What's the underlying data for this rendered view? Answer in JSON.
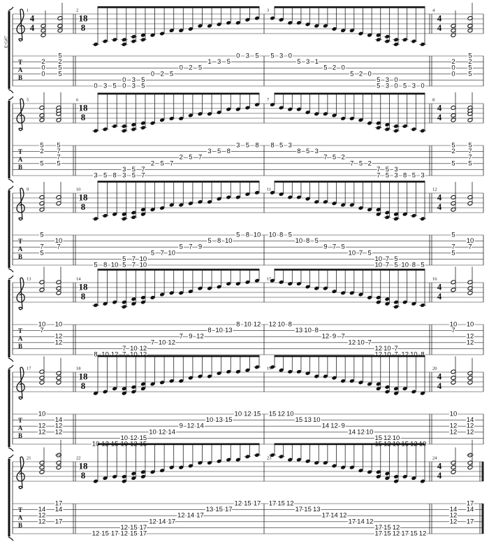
{
  "side_label": "E-G#7",
  "tab_label": [
    "T",
    "A",
    "B"
  ],
  "systems": [
    {
      "measures": [
        {
          "number": 1,
          "time": [
            4,
            4
          ],
          "columns": [
            {
              "2": 2,
              "3": 0,
              "4": 0
            },
            {
              "1": 5,
              "2": 2,
              "3": 5,
              "4": 5
            }
          ]
        },
        {
          "number": 2,
          "time": [
            18,
            8
          ],
          "columns": [
            {
              "6": 0
            },
            {
              "6": 3
            },
            {
              "6": 5
            },
            {
              "5": 0,
              "6": 0
            },
            {
              "5": 3,
              "6": 3
            },
            {
              "5": 5,
              "6": 5
            },
            {
              "4": 0
            },
            {
              "4": 2
            },
            {
              "4": 5
            },
            {
              "3": 0
            },
            {
              "3": 2
            },
            {
              "3": 5
            },
            {
              "2": 1
            },
            {
              "2": 3
            },
            {
              "2": 5
            },
            {
              "1": 0
            },
            {
              "1": 3
            },
            {
              "1": 5
            }
          ]
        },
        {
          "number": 3,
          "columns": [
            {
              "1": 5
            },
            {
              "1": 3
            },
            {
              "1": 0
            },
            {
              "2": 5
            },
            {
              "2": 3
            },
            {
              "2": 1
            },
            {
              "3": 5
            },
            {
              "3": 2
            },
            {
              "3": 0
            },
            {
              "4": 5
            },
            {
              "4": 2
            },
            {
              "4": 0
            },
            {
              "5": 5,
              "6": 5
            },
            {
              "5": 3,
              "6": 3
            },
            {
              "5": 0,
              "6": 0
            },
            {
              "6": 5
            },
            {
              "6": 3
            },
            {
              "6": 0
            }
          ]
        },
        {
          "number": 4,
          "time": [
            4,
            4
          ],
          "columns": [
            {
              "2": 2,
              "3": 0,
              "4": 0
            },
            {
              "1": 5,
              "2": 2,
              "3": 5,
              "4": 5
            }
          ]
        }
      ]
    },
    {
      "measures": [
        {
          "number": 5,
          "columns": [
            {
              "1": 5,
              "2": 2,
              "4": 5
            },
            {
              "1": 5,
              "2": 7,
              "3": 7,
              "4": 5
            }
          ]
        },
        {
          "number": 6,
          "time": [
            18,
            8
          ],
          "columns": [
            {
              "6": 3
            },
            {
              "6": 5
            },
            {
              "6": 8
            },
            {
              "5": 3,
              "6": 3
            },
            {
              "5": 5,
              "6": 5
            },
            {
              "5": 7,
              "6": 7
            },
            {
              "4": 2
            },
            {
              "4": 5
            },
            {
              "4": 7
            },
            {
              "3": 2
            },
            {
              "3": 5
            },
            {
              "3": 7
            },
            {
              "2": 3
            },
            {
              "2": 5
            },
            {
              "2": 8
            },
            {
              "1": 3
            },
            {
              "1": 5
            },
            {
              "1": 8
            }
          ]
        },
        {
          "number": 7,
          "columns": [
            {
              "1": 8
            },
            {
              "1": 5
            },
            {
              "1": 3
            },
            {
              "2": 8
            },
            {
              "2": 5
            },
            {
              "2": 3
            },
            {
              "3": 7
            },
            {
              "3": 5
            },
            {
              "3": 2
            },
            {
              "4": 7
            },
            {
              "4": 5
            },
            {
              "4": 2
            },
            {
              "5": 7,
              "6": 7
            },
            {
              "5": 5,
              "6": 5
            },
            {
              "5": 3,
              "6": 3
            },
            {
              "6": 8
            },
            {
              "6": 5
            },
            {
              "6": 3
            }
          ]
        },
        {
          "number": 8,
          "time": [
            4,
            4
          ],
          "columns": [
            {
              "1": 5,
              "2": 2,
              "4": 5
            },
            {
              "1": 5,
              "2": 7,
              "3": 7,
              "4": 5
            }
          ]
        }
      ]
    },
    {
      "measures": [
        {
          "number": 9,
          "columns": [
            {
              "1": 5,
              "3": 7,
              "4": 5
            },
            {
              "2": 10,
              "3": 7
            }
          ]
        },
        {
          "number": 10,
          "time": [
            18,
            8
          ],
          "columns": [
            {
              "6": 5
            },
            {
              "6": 8
            },
            {
              "6": 10
            },
            {
              "5": 5,
              "6": 5
            },
            {
              "5": 7,
              "6": 7
            },
            {
              "5": 10,
              "6": 10
            },
            {
              "4": 5
            },
            {
              "4": 7
            },
            {
              "4": 10
            },
            {
              "3": 5
            },
            {
              "3": 7
            },
            {
              "3": 9
            },
            {
              "2": 5
            },
            {
              "2": 8
            },
            {
              "2": 10
            },
            {
              "1": 5
            },
            {
              "1": 8
            },
            {
              "1": 10
            }
          ]
        },
        {
          "number": 11,
          "columns": [
            {
              "1": 10
            },
            {
              "1": 8
            },
            {
              "1": 5
            },
            {
              "2": 10
            },
            {
              "2": 8
            },
            {
              "2": 5
            },
            {
              "3": 9
            },
            {
              "3": 7
            },
            {
              "3": 5
            },
            {
              "4": 10
            },
            {
              "4": 7
            },
            {
              "4": 5
            },
            {
              "5": 10,
              "6": 10
            },
            {
              "5": 7,
              "6": 7
            },
            {
              "5": 5,
              "6": 5
            },
            {
              "6": 10
            },
            {
              "6": 8
            },
            {
              "6": 5
            }
          ]
        },
        {
          "number": 12,
          "time": [
            4,
            4
          ],
          "columns": [
            {
              "1": 5,
              "3": 7,
              "4": 5
            },
            {
              "2": 10,
              "3": 7
            }
          ]
        }
      ]
    },
    {
      "measures": [
        {
          "number": 13,
          "columns": [
            {
              "1": 10,
              "2": 7
            },
            {
              "1": 10,
              "3": 12,
              "4": 12
            }
          ]
        },
        {
          "number": 14,
          "time": [
            18,
            8
          ],
          "columns": [
            {
              "6": 8
            },
            {
              "6": 10
            },
            {
              "6": 12
            },
            {
              "5": 7,
              "6": 7
            },
            {
              "5": 10,
              "6": 10
            },
            {
              "5": 12,
              "6": 12
            },
            {
              "4": 7
            },
            {
              "4": 10
            },
            {
              "4": 12
            },
            {
              "3": 7
            },
            {
              "3": 9
            },
            {
              "3": 12
            },
            {
              "2": 8
            },
            {
              "2": 10
            },
            {
              "2": 13
            },
            {
              "1": 8
            },
            {
              "1": 10
            },
            {
              "1": 12
            }
          ]
        },
        {
          "number": 15,
          "columns": [
            {
              "1": 12
            },
            {
              "1": 10
            },
            {
              "1": 8
            },
            {
              "2": 13
            },
            {
              "2": 10
            },
            {
              "2": 8
            },
            {
              "3": 12
            },
            {
              "3": 9
            },
            {
              "3": 7
            },
            {
              "4": 12
            },
            {
              "4": 10
            },
            {
              "4": 7
            },
            {
              "5": 12,
              "6": 12
            },
            {
              "5": 10,
              "6": 10
            },
            {
              "5": 7,
              "6": 7
            },
            {
              "6": 12
            },
            {
              "6": 10
            },
            {
              "6": 8
            }
          ]
        },
        {
          "number": 16,
          "time": [
            4,
            4
          ],
          "columns": [
            {
              "1": 10,
              "2": 7
            },
            {
              "1": 10,
              "3": 12,
              "4": 12
            }
          ]
        }
      ]
    },
    {
      "measures": [
        {
          "number": 17,
          "columns": [
            {
              "1": 10,
              "3": 12,
              "4": 12
            },
            {
              "2": 14,
              "3": 12,
              "4": 12
            }
          ]
        },
        {
          "number": 18,
          "time": [
            18,
            8
          ],
          "columns": [
            {
              "6": 10
            },
            {
              "6": 12
            },
            {
              "6": 15
            },
            {
              "5": 10,
              "6": 10
            },
            {
              "5": 12,
              "6": 12
            },
            {
              "5": 15,
              "6": 15
            },
            {
              "4": 10
            },
            {
              "4": 12
            },
            {
              "4": 14
            },
            {
              "3": 9
            },
            {
              "3": 12
            },
            {
              "3": 14
            },
            {
              "2": 10
            },
            {
              "2": 13
            },
            {
              "2": 15
            },
            {
              "1": 10
            },
            {
              "1": 12
            },
            {
              "1": 15
            }
          ]
        },
        {
          "number": 19,
          "columns": [
            {
              "1": 15
            },
            {
              "1": 12
            },
            {
              "1": 10
            },
            {
              "2": 15
            },
            {
              "2": 13
            },
            {
              "2": 10
            },
            {
              "3": 14
            },
            {
              "3": 12
            },
            {
              "3": 9
            },
            {
              "4": 14
            },
            {
              "4": 12
            },
            {
              "4": 10
            },
            {
              "5": 15,
              "6": 15
            },
            {
              "5": 12,
              "6": 12
            },
            {
              "5": 10,
              "6": 10
            },
            {
              "6": 15
            },
            {
              "6": 12
            },
            {
              "6": 10
            }
          ]
        },
        {
          "number": 20,
          "time": [
            4,
            4
          ],
          "columns": [
            {
              "1": 10,
              "3": 12,
              "4": 12
            },
            {
              "2": 14,
              "3": 12,
              "4": 12
            }
          ]
        }
      ]
    },
    {
      "measures": [
        {
          "number": 21,
          "columns": [
            {
              "2": 14,
              "3": 12,
              "4": 12
            },
            {
              "1": 17,
              "2": 14,
              "4": 17
            }
          ]
        },
        {
          "number": 22,
          "time": [
            18,
            8
          ],
          "columns": [
            {
              "6": 12
            },
            {
              "6": 15
            },
            {
              "6": 17
            },
            {
              "5": 12,
              "6": 12
            },
            {
              "5": 15,
              "6": 15
            },
            {
              "5": 17,
              "6": 17
            },
            {
              "4": 12
            },
            {
              "4": 14
            },
            {
              "4": 17
            },
            {
              "3": 12
            },
            {
              "3": 14
            },
            {
              "3": 17
            },
            {
              "2": 13
            },
            {
              "2": 15
            },
            {
              "2": 17
            },
            {
              "1": 12
            },
            {
              "1": 15
            },
            {
              "1": 17
            }
          ]
        },
        {
          "number": 23,
          "columns": [
            {
              "1": 17
            },
            {
              "1": 15
            },
            {
              "1": 12
            },
            {
              "2": 17
            },
            {
              "2": 15
            },
            {
              "2": 13
            },
            {
              "3": 17
            },
            {
              "3": 14
            },
            {
              "3": 12
            },
            {
              "4": 17
            },
            {
              "4": 14
            },
            {
              "4": 12
            },
            {
              "5": 17,
              "6": 17
            },
            {
              "5": 15,
              "6": 15
            },
            {
              "5": 12,
              "6": 12
            },
            {
              "6": 17
            },
            {
              "6": 15
            },
            {
              "6": 12
            }
          ]
        },
        {
          "number": 24,
          "time": [
            4,
            4
          ],
          "columns": [
            {
              "2": 14,
              "3": 12,
              "4": 12
            },
            {
              "1": 17,
              "2": 14,
              "4": 17
            }
          ]
        }
      ]
    }
  ]
}
